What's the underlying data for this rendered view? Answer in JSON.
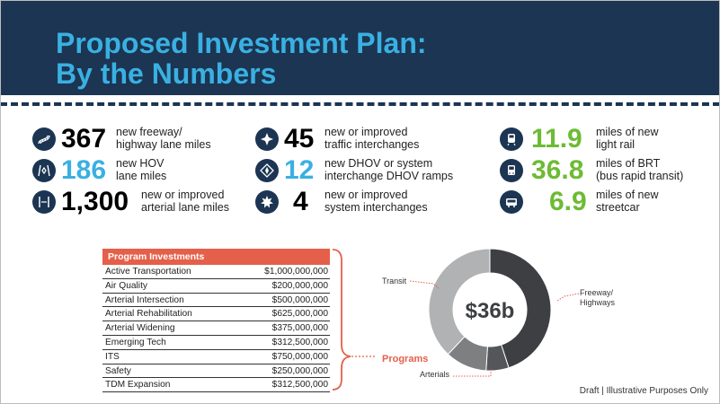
{
  "header": {
    "title_line1": "Proposed Investment Plan:",
    "title_line2": "By the Numbers"
  },
  "stats": [
    {
      "icon": "road-curve-icon",
      "number": "367",
      "desc1": "new freeway/",
      "desc2": "highway lane miles",
      "color": "#1b3552"
    },
    {
      "icon": "hov-lane-icon",
      "number": "186",
      "desc1": "new HOV",
      "desc2": "lane miles",
      "color": "#3ab0e2"
    },
    {
      "icon": "arterial-road-icon",
      "number": "1,300",
      "desc1": "new or improved",
      "desc2": "arterial lane miles",
      "color": "#1b3552"
    },
    {
      "icon": "interchange-star-icon",
      "number": "45",
      "desc1": "new or improved",
      "desc2": "traffic interchanges",
      "color": "#1b3552"
    },
    {
      "icon": "dhov-interchange-icon",
      "number": "12",
      "desc1": "new DHOV or system",
      "desc2": "interchange DHOV ramps",
      "color": "#3ab0e2"
    },
    {
      "icon": "system-interchange-icon",
      "number": "4",
      "desc1": "new or improved",
      "desc2": "system interchanges",
      "color": "#1b3552"
    },
    {
      "icon": "light-rail-icon",
      "number": "11.9",
      "desc1": "miles of new",
      "desc2": "light rail",
      "color": "#6dbb34"
    },
    {
      "icon": "brt-icon",
      "number": "36.8",
      "desc1": "miles of BRT",
      "desc2": "(bus rapid transit)",
      "color": "#6dbb34"
    },
    {
      "icon": "streetcar-icon",
      "number": "6.9",
      "desc1": "miles of new",
      "desc2": "streetcar",
      "color": "#6dbb34"
    }
  ],
  "table": {
    "header": "Program Investments",
    "rows": [
      {
        "name": "Active Transportation",
        "value": "$1,000,000,000"
      },
      {
        "name": "Air Quality",
        "value": "$200,000,000"
      },
      {
        "name": "Arterial Intersection",
        "value": "$500,000,000"
      },
      {
        "name": "Arterial Rehabilitation",
        "value": "$625,000,000"
      },
      {
        "name": "Arterial Widening",
        "value": "$375,000,000"
      },
      {
        "name": "Emerging Tech",
        "value": "$312,500,000"
      },
      {
        "name": "ITS",
        "value": "$750,000,000"
      },
      {
        "name": "Safety",
        "value": "$250,000,000"
      },
      {
        "name": "TDM Expansion",
        "value": "$312,500,000"
      }
    ]
  },
  "programs_label": "Programs",
  "chart_data": {
    "type": "pie",
    "center_label": "$36b",
    "slices": [
      {
        "label": "Freeway/ Highways",
        "value": 45,
        "color": "#3d3f42"
      },
      {
        "label": "Arterials",
        "value": 6,
        "color": "#545659"
      },
      {
        "label": "Programs",
        "value": 11,
        "color": "#7d7f81"
      },
      {
        "label": "Transit",
        "value": 38,
        "color": "#b0b2b4"
      }
    ],
    "labels": {
      "transit": "Transit",
      "freeway_line1": "Freeway/",
      "freeway_line2": "Highways",
      "arterials": "Arterials"
    }
  },
  "footer": "Draft | Illustrative Purposes Only"
}
